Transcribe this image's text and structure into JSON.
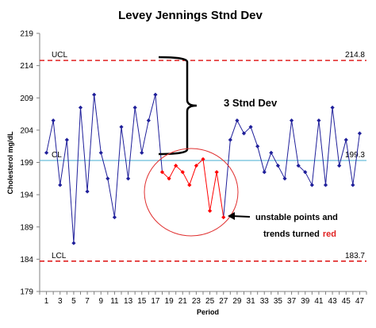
{
  "chart_data": {
    "type": "line",
    "title": "Levey Jennings Stnd Dev",
    "xlabel": "Period",
    "ylabel": "Cholesterol mg/dL",
    "ylim": [
      179,
      219
    ],
    "yticks": [
      179,
      184,
      189,
      194,
      199,
      204,
      209,
      214,
      219
    ],
    "xlim": [
      0,
      48
    ],
    "xticks": [
      1,
      3,
      5,
      7,
      9,
      11,
      13,
      15,
      17,
      19,
      21,
      23,
      25,
      27,
      29,
      31,
      33,
      35,
      37,
      39,
      41,
      43,
      45,
      47
    ],
    "grid": false,
    "series": [
      {
        "color": "#1f1f9a",
        "highlight_color": "#ff0000",
        "x": [
          1,
          2,
          3,
          4,
          5,
          6,
          7,
          8,
          9,
          10,
          11,
          12,
          13,
          14,
          15,
          16,
          17,
          18,
          19,
          20,
          21,
          22,
          23,
          24,
          25,
          26,
          27,
          28,
          29,
          30,
          31,
          32,
          33,
          34,
          35,
          36,
          37,
          38,
          39,
          40,
          41,
          42,
          43,
          44,
          45,
          46,
          47
        ],
        "values": [
          200.5,
          205.5,
          195.5,
          202.5,
          186.5,
          207.5,
          194.5,
          209.5,
          200.5,
          196.5,
          190.5,
          204.5,
          196.5,
          207.5,
          200.5,
          205.5,
          209.5,
          197.5,
          196.5,
          198.5,
          197.5,
          195.5,
          198.5,
          199.5,
          191.5,
          197.5,
          190.5,
          202.5,
          205.5,
          203.5,
          204.5,
          201.5,
          197.5,
          200.5,
          198.5,
          196.5,
          205.5,
          198.5,
          197.5,
          195.5,
          205.5,
          195.5,
          207.5,
          198.5,
          202.5,
          195.5,
          203.5
        ],
        "highlighted_x": [
          18,
          19,
          20,
          21,
          22,
          23,
          24,
          25,
          26,
          27
        ]
      }
    ],
    "reference_lines": [
      {
        "label": "UCL",
        "value_label": "214.8",
        "value": 214.8,
        "color": "#e02020",
        "style": "dashed"
      },
      {
        "label": "CL",
        "value_label": "199.3",
        "value": 199.3,
        "color": "#5bb8d6",
        "style": "solid"
      },
      {
        "label": "LCL",
        "value_label": "183.7",
        "value": 183.7,
        "color": "#e02020",
        "style": "dashed"
      }
    ],
    "annotations": {
      "stnd_dev": "3 Stnd Dev",
      "unstable_line1": "unstable points and",
      "unstable_line2_prefix": "trends turned",
      "unstable_line2_red": "red"
    }
  }
}
